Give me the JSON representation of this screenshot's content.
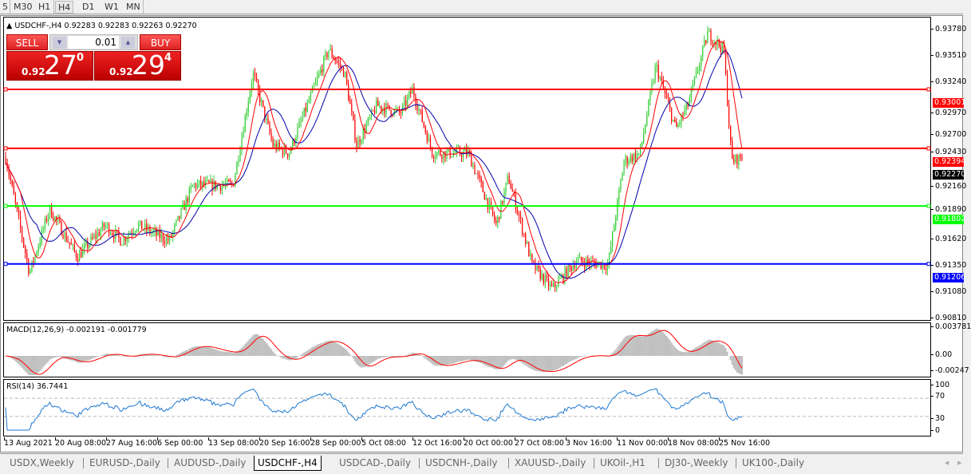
{
  "toolbar": {
    "timeframes": [
      "5",
      "M30",
      "H1",
      "H4",
      "D1",
      "W1",
      "MN"
    ],
    "active": "H4"
  },
  "chart": {
    "header": "USDCHF-,H4  0.92283 0.92283 0.92263 0.92270",
    "symbol": "USDCHF-",
    "timeframe": "H4",
    "ohlc": {
      "open": "0.92283",
      "high": "0.92283",
      "low": "0.92263",
      "close": "0.92270"
    },
    "price_axis": [
      "0.93780",
      "0.93510",
      "0.93240",
      "0.92970",
      "0.92700",
      "0.92430",
      "0.92160",
      "0.91890",
      "0.91620",
      "0.91350",
      "0.91080",
      "0.90810"
    ],
    "current_price": "0.92270",
    "hlines": [
      {
        "price": "0.93001",
        "color": "#ff0000"
      },
      {
        "price": "0.92394",
        "color": "#ff0000"
      },
      {
        "price": "0.91802",
        "color": "#00ff00"
      },
      {
        "price": "0.91206",
        "color": "#0000ff"
      }
    ],
    "up_color": "#32cd32",
    "down_color": "#ff0000",
    "ma_fast_color": "#ff0000",
    "ma_slow_color": "#0000aa",
    "time_axis": [
      "13 Aug 2021",
      "20 Aug 08:00",
      "27 Aug 16:00",
      "6 Sep 00:00",
      "13 Sep 08:00",
      "20 Sep 16:00",
      "28 Sep 00:00",
      "5 Oct 08:00",
      "12 Oct 16:00",
      "20 Oct 00:00",
      "27 Oct 08:00",
      "3 Nov 16:00",
      "11 Nov 00:00",
      "18 Nov 08:00",
      "25 Nov 16:00"
    ]
  },
  "trade": {
    "sell_label": "SELL",
    "buy_label": "BUY",
    "lot": "0.01",
    "sell": {
      "small": "0.92",
      "big": "27",
      "pip": "0"
    },
    "buy": {
      "small": "0.92",
      "big": "29",
      "pip": "4"
    }
  },
  "macd": {
    "label": "MACD(12,26,9) -0.002191 -0.001779",
    "axis": [
      "0.003781",
      "0.00",
      "-0.00247"
    ]
  },
  "rsi": {
    "label": "RSI(14) 36.7441",
    "axis": [
      "100",
      "70",
      "30",
      "0"
    ],
    "levels": [
      70,
      30
    ],
    "color": "#1e78d2"
  },
  "tabs": [
    "USDX,Weekly",
    "EURUSD-,Daily",
    "AUDUSD-,Daily",
    "USDCHF-,H4",
    "USDCAD-,Daily",
    "USDCNH-,Daily",
    "XAUUSD-,Daily",
    "UKOil-,H1",
    "DJ30-,Weekly",
    "UK100-,Daily"
  ],
  "active_tab": "USDCHF-,H4"
}
